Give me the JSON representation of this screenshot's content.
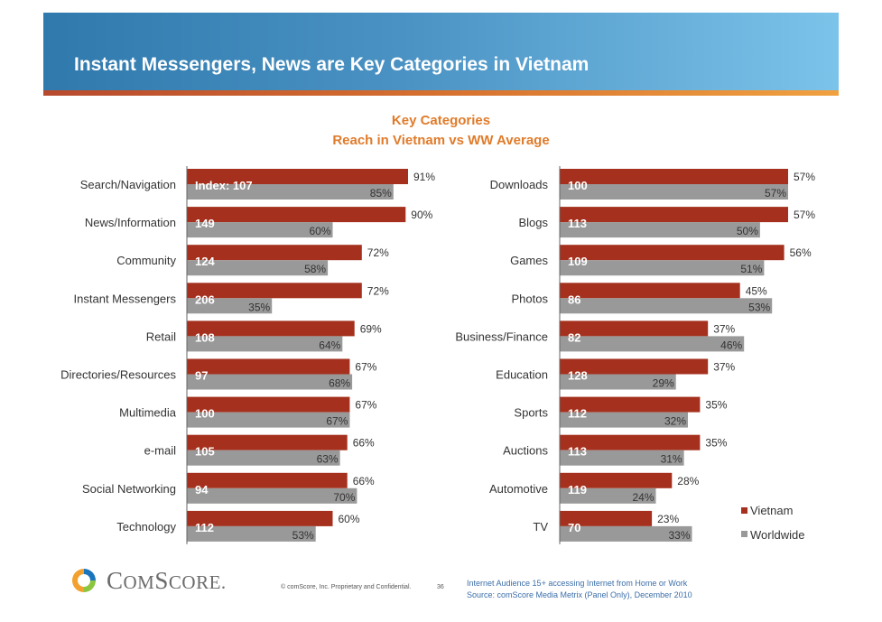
{
  "slide": {
    "title": "Instant Messengers, News are Key Categories in Vietnam",
    "subtitle_line1": "Key Categories",
    "subtitle_line2": "Reach in Vietnam vs WW Average"
  },
  "colors": {
    "vietnam": "#a5301d",
    "worldwide": "#999999",
    "accent": "#e07b2a"
  },
  "chart_data": [
    {
      "type": "bar",
      "orientation": "horizontal",
      "categories": [
        "Search/Navigation",
        "News/Information",
        "Community",
        "Instant Messengers",
        "Retail",
        "Directories/Resources",
        "Multimedia",
        "e-mail",
        "Social Networking",
        "Technology"
      ],
      "series": [
        {
          "name": "Vietnam",
          "values": [
            91,
            90,
            72,
            72,
            69,
            67,
            67,
            66,
            66,
            60
          ]
        },
        {
          "name": "Worldwide",
          "values": [
            85,
            60,
            58,
            35,
            64,
            68,
            67,
            63,
            70,
            53
          ]
        }
      ],
      "index_labels": [
        "Index: 107",
        "149",
        "124",
        "206",
        "108",
        "97",
        "100",
        "105",
        "94",
        "112"
      ],
      "value_unit": "%",
      "xlim": [
        0,
        100
      ]
    },
    {
      "type": "bar",
      "orientation": "horizontal",
      "categories": [
        "Downloads",
        "Blogs",
        "Games",
        "Photos",
        "Business/Finance",
        "Education",
        "Sports",
        "Auctions",
        "Automotive",
        "TV"
      ],
      "series": [
        {
          "name": "Vietnam",
          "values": [
            57,
            57,
            56,
            45,
            37,
            37,
            35,
            35,
            28,
            23
          ]
        },
        {
          "name": "Worldwide",
          "values": [
            57,
            50,
            51,
            53,
            46,
            29,
            32,
            31,
            24,
            33
          ]
        }
      ],
      "index_labels": [
        "100",
        "113",
        "109",
        "86",
        "82",
        "128",
        "112",
        "113",
        "119",
        "70"
      ],
      "value_unit": "%",
      "xlim": [
        0,
        57
      ]
    }
  ],
  "legend": {
    "vietnam": "Vietnam",
    "worldwide": "Worldwide"
  },
  "footer": {
    "logo_text_big1": "C",
    "logo_text_small1": "OM",
    "logo_text_big2": "S",
    "logo_text_small2": "CORE",
    "logo_mark": ".",
    "copyright": "© comScore, Inc.  Proprietary and Confidential.",
    "page_number": "36",
    "footnote_line1": "Internet Audience 15+ accessing Internet from Home or Work",
    "footnote_line2": "Source:  comScore Media Metrix (Panel Only), December 2010"
  }
}
